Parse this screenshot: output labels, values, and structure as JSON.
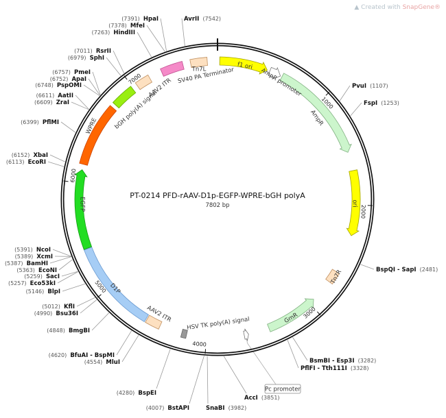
{
  "logo": {
    "prefix": "Created with ",
    "brand": "SnapGene®"
  },
  "plasmid": {
    "name": "PT-0214   PFD-rAAV-D1p-EGFP-WPRE-bGH polyA",
    "length_label": "7802 bp",
    "length": 7802
  },
  "ticks": [
    "1000",
    "2000",
    "3000",
    "4000",
    "5000",
    "6000",
    "7000"
  ],
  "features": [
    {
      "name": "f1 ori",
      "start": 20,
      "end": 456,
      "dir": 1,
      "color": "#ffff00",
      "stroke": "#a0a000",
      "label_color": "#333"
    },
    {
      "name": "AmpR promoter",
      "start": 480,
      "end": 585,
      "dir": 1,
      "color": "#ffffff",
      "stroke": "#777"
    },
    {
      "name": "AmpR",
      "start": 600,
      "end": 1520,
      "dir": 1,
      "color": "#ccf5cc",
      "stroke": "#80b080",
      "label_color": "#333"
    },
    {
      "name": "ori",
      "start": 1690,
      "end": 2280,
      "dir": 1,
      "color": "#ffff00",
      "stroke": "#a0a000",
      "label_color": "#333"
    },
    {
      "name": "Tn7R",
      "start": 2630,
      "end": 2740,
      "dir": 0,
      "color": "#fde0c0",
      "stroke": "#c09060",
      "label_color": "#333"
    },
    {
      "name": "GmR",
      "start": 2950,
      "end": 3430,
      "dir": -1,
      "color": "#ccf5cc",
      "stroke": "#80b080",
      "label_color": "#2a6a2a"
    },
    {
      "name": "Pc promoter",
      "start": 3620,
      "end": 3660,
      "dir": -1,
      "color": "#ffffff",
      "stroke": "#777"
    },
    {
      "name": "HSV TK poly(A) signal",
      "start": 4180,
      "end": 4225,
      "dir": 0,
      "color": "#999999",
      "stroke": "#666"
    },
    {
      "name": "AAV2 ITR",
      "start": 4430,
      "end": 4560,
      "dir": 0,
      "color": "#fde0c0",
      "stroke": "#c09060"
    },
    {
      "name": "D1P",
      "start": 4570,
      "end": 5400,
      "dir": 0,
      "color": "#a6cdf5",
      "stroke": "#6a9ad0",
      "label_color": "#224"
    },
    {
      "name": "EGFP",
      "start": 5405,
      "end": 6120,
      "dir": 1,
      "color": "#22dd22",
      "stroke": "#119911",
      "label_color": "#133"
    },
    {
      "name": "WPRE",
      "start": 6170,
      "end": 6745,
      "dir": 0,
      "color": "#ff6600",
      "stroke": "#cc4400",
      "label_color": "#ffffff"
    },
    {
      "name": "bGH poly(A) signal",
      "start": 6780,
      "end": 6990,
      "dir": 0,
      "color": "#99ee11",
      "stroke": "#66aa00"
    },
    {
      "name": "AAV2 ITR",
      "start": 7040,
      "end": 7170,
      "dir": 0,
      "color": "#fde0c0",
      "stroke": "#c09060"
    },
    {
      "name": "SV40 PA Terminator",
      "start": 7290,
      "end": 7490,
      "dir": 0,
      "color": "#f58ac8",
      "stroke": "#c05090"
    },
    {
      "name": "Tn7L",
      "start": 7560,
      "end": 7710,
      "dir": 0,
      "color": "#fde0c0",
      "stroke": "#c09060"
    }
  ],
  "sites": [
    {
      "name": "HpaI",
      "position": 7391
    },
    {
      "name": "MfeI",
      "position": 7378
    },
    {
      "name": "HindIII",
      "position": 7263
    },
    {
      "name": "RsrII",
      "position": 7011
    },
    {
      "name": "SphI",
      "position": 6979
    },
    {
      "name": "PmeI",
      "position": 6757
    },
    {
      "name": "ApaI",
      "position": 6752
    },
    {
      "name": "PspOMI",
      "position": 6748
    },
    {
      "name": "AatII",
      "position": 6611
    },
    {
      "name": "ZraI",
      "position": 6609
    },
    {
      "name": "PflMI",
      "position": 6399
    },
    {
      "name": "XbaI",
      "position": 6152
    },
    {
      "name": "EcoRI",
      "position": 6113
    },
    {
      "name": "NcoI",
      "position": 5391
    },
    {
      "name": "XcmI",
      "position": 5389
    },
    {
      "name": "BamHI",
      "position": 5387
    },
    {
      "name": "EcoNI",
      "position": 5363
    },
    {
      "name": "SacI",
      "position": 5259
    },
    {
      "name": "Eco53kI",
      "position": 5257
    },
    {
      "name": "BlpI",
      "position": 5146
    },
    {
      "name": "KflI",
      "position": 5012
    },
    {
      "name": "Bsu36I",
      "position": 4990
    },
    {
      "name": "BmgBI",
      "position": 4848
    },
    {
      "name": "BfuAI - BspMI",
      "position": 4620
    },
    {
      "name": "MluI",
      "position": 4554
    },
    {
      "name": "BspEI",
      "position": 4280
    },
    {
      "name": "BstAPI",
      "position": 4007
    },
    {
      "name": "SnaBI",
      "position": 3982
    },
    {
      "name": "AccI",
      "position": 3851
    },
    {
      "name": "PflFI - Tth111I",
      "position": 3328
    },
    {
      "name": "BsmBI - Esp3I",
      "position": 3282
    },
    {
      "name": "BspQI - SapI",
      "position": 2481
    },
    {
      "name": "FspI",
      "position": 1253
    },
    {
      "name": "PvuI",
      "position": 1107
    },
    {
      "name": "AvrII",
      "position": 7542
    }
  ]
}
